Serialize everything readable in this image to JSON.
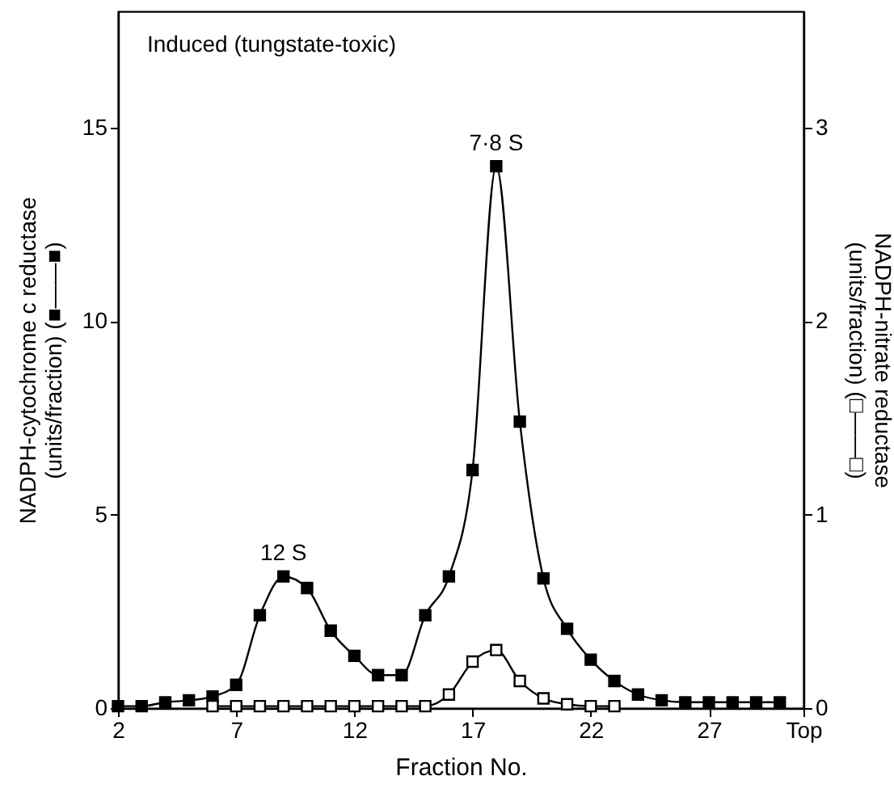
{
  "chart_data": {
    "type": "line",
    "xlabel": "Fraction No.",
    "ylabel": "NADPH-cytochrome c reductase\n(units/fraction) (■——■)",
    "y2label": "NADPH-nitrate reductase\n(units/fraction) (□——□)",
    "annotations": [
      "Induced (tungstate-toxic)",
      {
        "text": "12 S",
        "x": 9,
        "y": 3.4
      },
      {
        "text": "7·8 S",
        "x": 18,
        "y": 14
      }
    ],
    "xlim": [
      2,
      31
    ],
    "xticks": [
      2,
      7,
      12,
      17,
      22,
      27,
      {
        "value": 31,
        "label": "Top"
      }
    ],
    "ylim": [
      0,
      18
    ],
    "yticks": [
      0,
      5,
      10,
      15
    ],
    "y2lim": [
      0,
      3.6
    ],
    "y2ticks": [
      0,
      1,
      2,
      3
    ],
    "grid": false,
    "marker": "square",
    "series": [
      {
        "color": "#000000",
        "x": [
          2,
          3,
          4,
          5,
          6,
          7,
          8,
          9,
          10,
          11,
          12,
          13,
          14,
          15,
          16,
          17,
          18,
          19,
          20,
          21,
          22,
          23,
          24,
          25,
          26,
          27,
          28,
          29,
          30
        ],
        "values": [
          0.05,
          0.05,
          0.15,
          0.2,
          0.3,
          0.6,
          2.4,
          3.4,
          3.1,
          2.0,
          1.35,
          0.85,
          0.85,
          2.4,
          3.4,
          6.15,
          14.0,
          7.4,
          3.35,
          2.05,
          1.25,
          0.7,
          0.35,
          0.2,
          0.15,
          0.15,
          0.15,
          0.15,
          0.15
        ]
      },
      {
        "color": "#000000",
        "axis": "y2",
        "x": [
          6,
          7,
          8,
          9,
          10,
          11,
          12,
          13,
          14,
          15,
          16,
          17,
          18,
          19,
          20,
          21,
          22,
          23
        ],
        "values": [
          0.01,
          0.01,
          0.01,
          0.01,
          0.01,
          0.01,
          0.01,
          0.01,
          0.01,
          0.01,
          0.07,
          0.24,
          0.3,
          0.14,
          0.05,
          0.02,
          0.01,
          0.01
        ]
      }
    ]
  }
}
